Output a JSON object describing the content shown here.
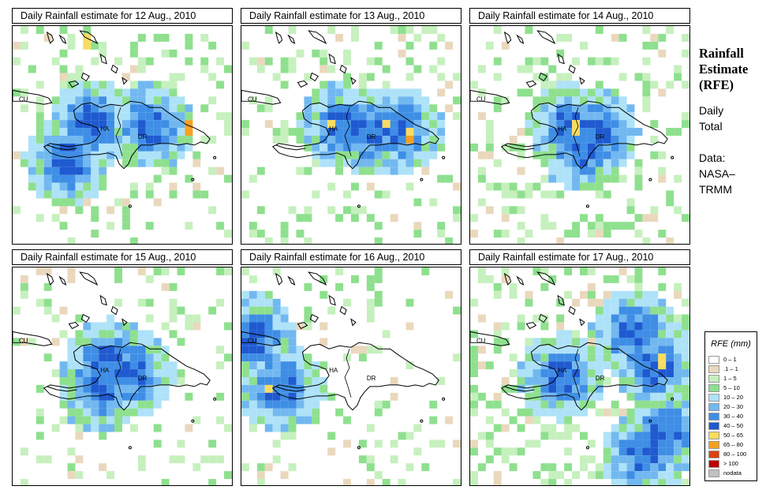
{
  "panels": [
    {
      "title": "Daily Rainfall estimate for  12 Aug., 2010",
      "seed": 12,
      "base": 0.22,
      "heavy": [
        [
          0.36,
          0.44
        ],
        [
          0.63,
          0.46
        ],
        [
          0.25,
          0.62
        ]
      ],
      "hot": [
        [
          0.34,
          0.06
        ],
        [
          0.8,
          0.47
        ]
      ]
    },
    {
      "title": "Daily Rainfall estimate for  13 Aug., 2010",
      "seed": 13,
      "base": 0.2,
      "heavy": [
        [
          0.46,
          0.46
        ],
        [
          0.6,
          0.48
        ],
        [
          0.72,
          0.47
        ]
      ],
      "hot": [
        [
          0.41,
          0.45
        ],
        [
          0.66,
          0.45
        ],
        [
          0.76,
          0.5
        ]
      ]
    },
    {
      "title": "Daily Rainfall estimate for  14 Aug., 2010",
      "seed": 14,
      "base": 0.22,
      "heavy": [
        [
          0.46,
          0.46
        ],
        [
          0.57,
          0.48
        ],
        [
          0.52,
          0.56
        ]
      ],
      "hot": [
        [
          0.49,
          0.47
        ]
      ]
    },
    {
      "title": "Daily Rainfall estimate for  15 Aug., 2010",
      "seed": 15,
      "base": 0.15,
      "heavy": [
        [
          0.44,
          0.43
        ],
        [
          0.54,
          0.48
        ],
        [
          0.4,
          0.55
        ]
      ],
      "hot": []
    },
    {
      "title": "Daily Rainfall estimate for  16 Aug., 2010",
      "seed": 16,
      "base": 0.14,
      "heavy": [
        [
          0.05,
          0.32
        ],
        [
          0.18,
          0.55
        ]
      ],
      "hot": [
        [
          0.12,
          0.55
        ]
      ]
    },
    {
      "title": "Daily Rainfall estimate for  17 Aug., 2010",
      "seed": 17,
      "base": 0.3,
      "heavy": [
        [
          0.75,
          0.3
        ],
        [
          0.85,
          0.45
        ],
        [
          0.8,
          0.85
        ],
        [
          0.9,
          0.75
        ],
        [
          0.42,
          0.5
        ]
      ],
      "hot": [
        [
          0.88,
          0.43
        ]
      ]
    }
  ],
  "map_labels": {
    "cuba": "CU",
    "haiti": "HA",
    "dominican_republic": "DR"
  },
  "side": {
    "title_line1": "Rainfall",
    "title_line2": "Estimate",
    "title_line3": "(RFE)",
    "period_line1": "Daily",
    "period_line2": "Total",
    "source_line1": "Data:",
    "source_line2": "NASA–",
    "source_line3": "TRMM"
  },
  "legend": {
    "title": "RFE (mm)",
    "items": [
      {
        "label": "0 – 1",
        "color": "#ffffff"
      },
      {
        "label": ".1 – 1",
        "color": "#ead8bd"
      },
      {
        "label": "1 – 5",
        "color": "#c6f0be"
      },
      {
        "label": "5 – 10",
        "color": "#8ee08e"
      },
      {
        "label": "10 – 20",
        "color": "#aee2f8"
      },
      {
        "label": "20 – 30",
        "color": "#72b8f0"
      },
      {
        "label": "30 – 40",
        "color": "#3f8ee6"
      },
      {
        "label": "40 – 50",
        "color": "#1f5ad0"
      },
      {
        "label": "50 – 65",
        "color": "#f8dc60"
      },
      {
        "label": "65 – 80",
        "color": "#f8a020"
      },
      {
        "label": "80 – 100",
        "color": "#e04010"
      },
      {
        "label": "> 100",
        "color": "#c00000"
      },
      {
        "label": "nodata",
        "color": "#c0c0c0"
      }
    ]
  }
}
